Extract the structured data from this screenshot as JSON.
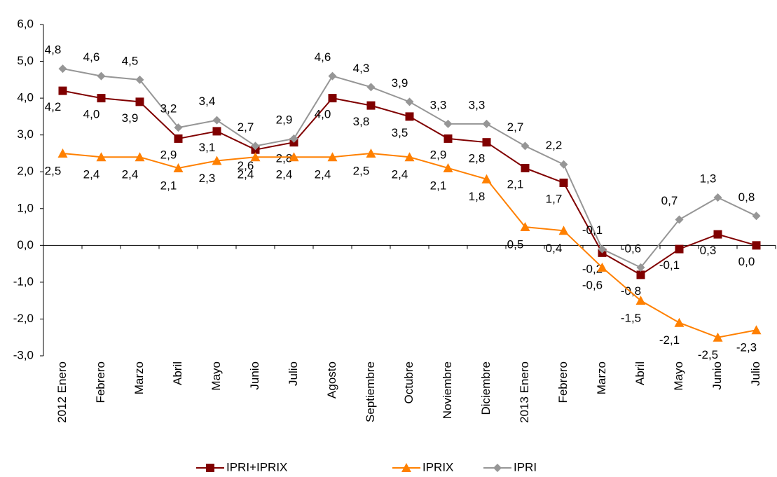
{
  "chart_data": {
    "type": "line",
    "categories": [
      "2012 Enero",
      "Febrero",
      "Marzo",
      "Abril",
      "Mayo",
      "Junio",
      "Julio",
      "Agosto",
      "Septiembre",
      "Octubre",
      "Noviembre",
      "Diciembre",
      "2013 Enero",
      "Febrero",
      "Marzo",
      "Abril",
      "Mayo",
      "Junio",
      "Julio"
    ],
    "series": [
      {
        "name": "IPRI+IPRIX",
        "color": "#800000",
        "marker": "square",
        "values": [
          4.2,
          4.0,
          3.9,
          2.9,
          3.1,
          2.6,
          2.8,
          4.0,
          3.8,
          3.5,
          2.9,
          2.8,
          2.1,
          1.7,
          -0.2,
          -0.8,
          -0.1,
          0.3,
          0.0
        ],
        "value_labels": [
          "4,2",
          "4,0",
          "3,9",
          "2,9",
          "3,1",
          "2,6",
          "2,8",
          "4,0",
          "3,8",
          "3,5",
          "2,9",
          "2,8",
          "2,1",
          "1,7",
          "-0,2",
          "-0,8",
          "-0,1",
          "0,3",
          "0,0"
        ]
      },
      {
        "name": "IPRIX",
        "color": "#ff8000",
        "marker": "triangle",
        "values": [
          2.5,
          2.4,
          2.4,
          2.1,
          2.3,
          2.4,
          2.4,
          2.4,
          2.5,
          2.4,
          2.1,
          1.8,
          0.5,
          0.4,
          -0.6,
          -1.5,
          -2.1,
          -2.5,
          -2.3
        ],
        "value_labels": [
          "2,5",
          "2,4",
          "2,4",
          "2,1",
          "2,3",
          "2,4",
          "2,4",
          "2,4",
          "2,5",
          "2,4",
          "2,1",
          "1,8",
          "0,5",
          "0,4",
          "-0,6",
          "-1,5",
          "-2,1",
          "-2,5",
          "-2,3"
        ]
      },
      {
        "name": "IPRI",
        "color": "#969696",
        "marker": "diamond",
        "values": [
          4.8,
          4.6,
          4.5,
          3.2,
          3.4,
          2.7,
          2.9,
          4.6,
          4.3,
          3.9,
          3.3,
          3.3,
          2.7,
          2.2,
          -0.1,
          -0.6,
          0.7,
          1.3,
          0.8
        ],
        "value_labels": [
          "4,8",
          "4,6",
          "4,5",
          "3,2",
          "3,4",
          "2,7",
          "2,9",
          "4,6",
          "4,3",
          "3,9",
          "3,3",
          "3,3",
          "2,7",
          "2,2",
          "-0,1",
          "-0,6",
          "0,7",
          "1,3",
          "0,8"
        ]
      }
    ],
    "ylim": [
      -3,
      6
    ],
    "yticks": [
      {
        "value": -3,
        "label": "-3,0"
      },
      {
        "value": -2,
        "label": "-2,0"
      },
      {
        "value": -1,
        "label": "-1,0"
      },
      {
        "value": 0,
        "label": "0,0"
      },
      {
        "value": 1,
        "label": "1,0"
      },
      {
        "value": 2,
        "label": "2,0"
      },
      {
        "value": 3,
        "label": "3,0"
      },
      {
        "value": 4,
        "label": "4,0"
      },
      {
        "value": 5,
        "label": "5,0"
      },
      {
        "value": 6,
        "label": "6,0"
      }
    ],
    "grid": false,
    "legend": "bottom"
  }
}
